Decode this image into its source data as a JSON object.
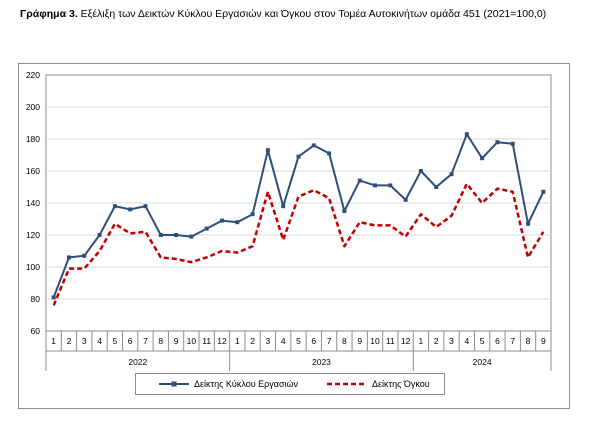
{
  "caption": {
    "prefix": "Γράφημα 3.",
    "text": "Εξέλιξη των Δεικτών Κύκλου Εργασιών και Όγκου στον Τομέα Αυτοκινήτων ομάδα 451 (2021=100,0)"
  },
  "chart_data": {
    "type": "line",
    "title": "",
    "xlabel": "",
    "ylabel": "",
    "ylim": [
      60,
      220
    ],
    "yticks": [
      60,
      80,
      100,
      120,
      140,
      160,
      180,
      200,
      220
    ],
    "grid": true,
    "legend_position": "bottom",
    "categories": [
      "1",
      "2",
      "3",
      "4",
      "5",
      "6",
      "7",
      "8",
      "9",
      "10",
      "11",
      "12",
      "1",
      "2",
      "3",
      "4",
      "5",
      "6",
      "7",
      "8",
      "9",
      "10",
      "11",
      "12",
      "1",
      "2",
      "3",
      "4",
      "5",
      "6",
      "7",
      "8",
      "9"
    ],
    "year_groups": [
      {
        "label": "2022",
        "count": 12
      },
      {
        "label": "2023",
        "count": 12
      },
      {
        "label": "2024",
        "count": 9
      }
    ],
    "series": [
      {
        "name": "Δείκτης Κύκλου Εργασιών",
        "color": "#2e4f7c",
        "style": "solid",
        "values": [
          81,
          106,
          107,
          120,
          138,
          136,
          138,
          120,
          120,
          119,
          124,
          129,
          128,
          133,
          173,
          138,
          169,
          176,
          171,
          135,
          154,
          151,
          151,
          142,
          160,
          150,
          158,
          183,
          168,
          178,
          177,
          127,
          147
        ]
      },
      {
        "name": "Δείκτης Όγκου",
        "color": "#c00000",
        "style": "dashed",
        "values": [
          76,
          99,
          99,
          110,
          127,
          121,
          122,
          106,
          105,
          103,
          106,
          110,
          109,
          113,
          147,
          117,
          144,
          148,
          143,
          113,
          128,
          126,
          126,
          119,
          133,
          125,
          132,
          152,
          140,
          149,
          147,
          106,
          122
        ]
      }
    ]
  }
}
